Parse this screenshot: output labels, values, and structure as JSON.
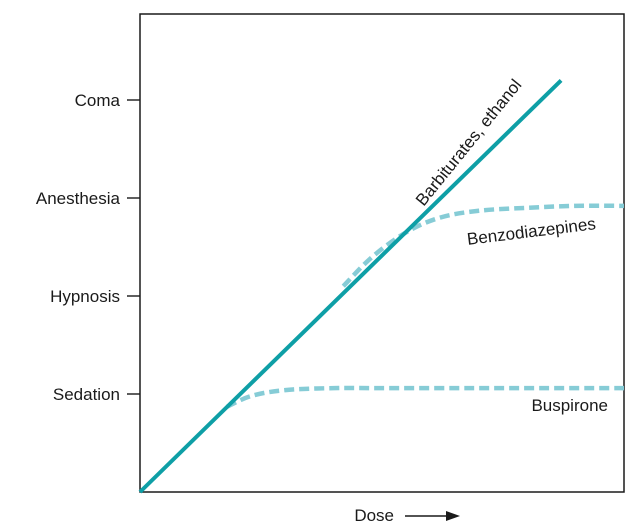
{
  "chart_data": {
    "type": "line",
    "xlabel": "Dose",
    "ylabel": "",
    "x_range": [
      0,
      10
    ],
    "y_range": [
      0,
      4
    ],
    "y_ticks": [
      {
        "value": 1,
        "label": "Sedation"
      },
      {
        "value": 2,
        "label": "Hypnosis"
      },
      {
        "value": 3,
        "label": "Anesthesia"
      },
      {
        "value": 4,
        "label": "Coma"
      }
    ],
    "grid": false,
    "series": [
      {
        "name": "Barbiturates, ethanol",
        "style": "solid",
        "color": "#0e9fa6",
        "x": [
          0,
          8.7
        ],
        "y": [
          0,
          4.2
        ]
      },
      {
        "name": "Benzodiazepines",
        "style": "dashed",
        "color": "#86ccd6",
        "x": [
          4.2,
          4.8,
          5.5,
          6.2,
          7.0,
          8.0,
          9.0,
          10.0
        ],
        "y": [
          2.1,
          2.4,
          2.65,
          2.8,
          2.87,
          2.9,
          2.92,
          2.92
        ]
      },
      {
        "name": "Buspirone",
        "style": "dashed",
        "color": "#86ccd6",
        "x": [
          1.8,
          2.3,
          3.0,
          4.0,
          5.0,
          6.5,
          8.0,
          10.0
        ],
        "y": [
          0.87,
          0.98,
          1.04,
          1.06,
          1.06,
          1.06,
          1.06,
          1.06
        ]
      }
    ]
  }
}
